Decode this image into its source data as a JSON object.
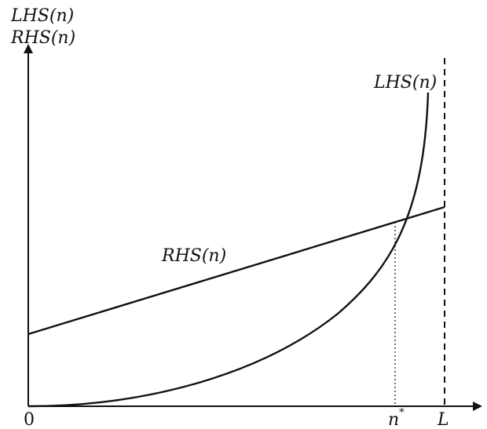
{
  "diagram": {
    "y_axis_label_1": "LHS(n)",
    "y_axis_label_2": "RHS(n)",
    "origin_label": "0",
    "n_star_base": "n",
    "n_star_sup": "*",
    "L_label": "L",
    "lhs_curve_label": "LHS(n)",
    "rhs_line_label": "RHS(n)",
    "line_color": "#111111"
  }
}
